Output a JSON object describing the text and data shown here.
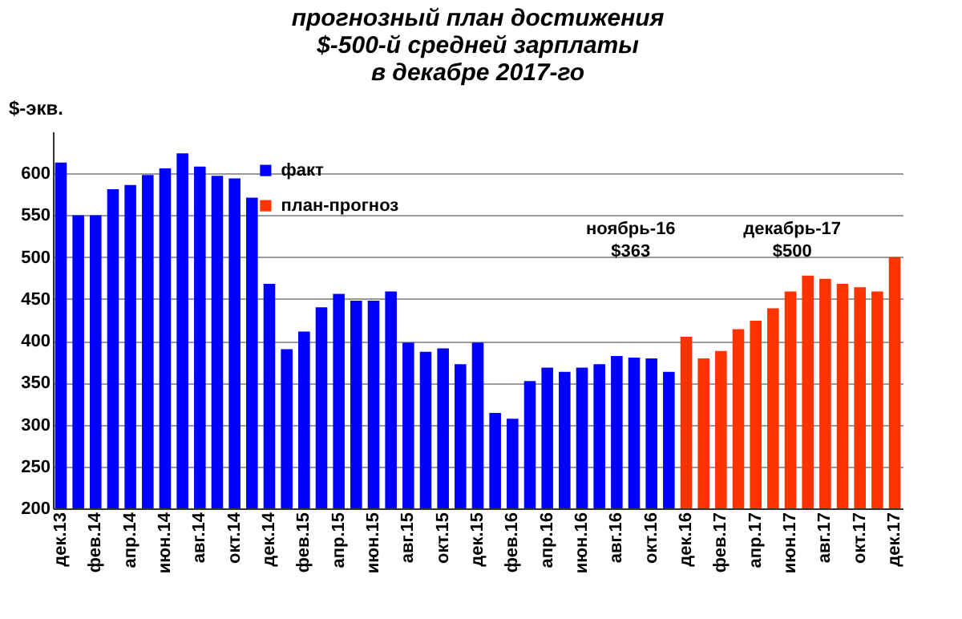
{
  "chart_data": {
    "type": "bar",
    "title": "прогнозный план достижения\n$-500-й средней зарплаты\nв декабре 2017-го",
    "ylabel": "$-экв.",
    "categories": [
      "дек.13",
      null,
      "фев.14",
      null,
      "апр.14",
      null,
      "июн.14",
      null,
      "авг.14",
      null,
      "окт.14",
      null,
      "дек.14",
      null,
      "фев.15",
      null,
      "апр.15",
      null,
      "июн.15",
      null,
      "авг.15",
      null,
      "окт.15",
      null,
      "дек.15",
      null,
      "фев.16",
      null,
      "апр.16",
      null,
      "июн.16",
      null,
      "авг.16",
      null,
      "окт.16",
      null,
      "дек.16",
      null,
      "фев.17",
      null,
      "апр.17",
      null,
      "июн.17",
      null,
      "авг.17",
      null,
      "окт.17",
      null,
      "дек.17"
    ],
    "series": [
      {
        "name": "факт",
        "color": "#0000ff",
        "values": [
          613,
          550,
          550,
          581,
          586,
          598,
          606,
          624,
          608,
          597,
          594,
          571,
          468,
          390,
          411,
          440,
          456,
          448,
          448,
          459,
          398,
          387,
          391,
          372,
          398,
          314,
          307,
          352,
          368,
          363,
          368,
          372,
          382,
          380,
          379,
          363,
          null,
          null,
          null,
          null,
          null,
          null,
          null,
          null,
          null,
          null,
          null,
          null,
          null
        ]
      },
      {
        "name": "план-прогноз",
        "color": "#ff3300",
        "values": [
          null,
          null,
          null,
          null,
          null,
          null,
          null,
          null,
          null,
          null,
          null,
          null,
          null,
          null,
          null,
          null,
          null,
          null,
          null,
          null,
          null,
          null,
          null,
          null,
          null,
          null,
          null,
          null,
          null,
          null,
          null,
          null,
          null,
          null,
          null,
          null,
          405,
          379,
          388,
          414,
          424,
          439,
          459,
          478,
          474,
          468,
          464,
          459,
          500
        ]
      }
    ],
    "ylim": [
      200,
      650
    ],
    "yticks": [
      200,
      250,
      300,
      350,
      400,
      450,
      500,
      550,
      600
    ],
    "grid": "y",
    "legend": "top left",
    "annotations": [
      "ноябрь-16\n$363",
      "декабрь-17\n$500"
    ]
  }
}
